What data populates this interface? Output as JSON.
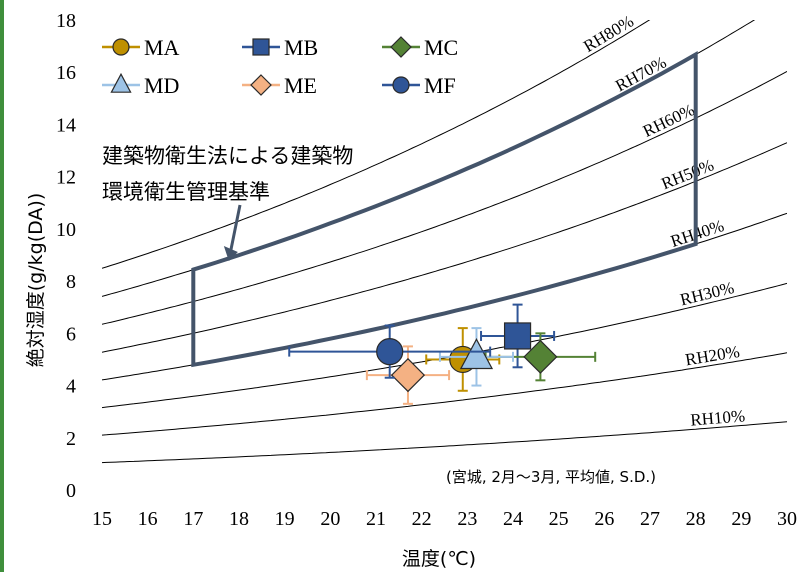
{
  "colors": {
    "frame": "#3f8f3c",
    "standard_box": "#44546a",
    "rh_curves": "#000000",
    "MA": "#bf9000",
    "MB": "#2f5597",
    "MC": "#548235",
    "MD": "#9dc3e6",
    "ME": "#f4b183",
    "MF": "#2f5597"
  },
  "chart_data": {
    "type": "scatter",
    "xlabel": "温度(℃)",
    "ylabel": "絶対湿度(g/kg(DA))",
    "xlim": [
      15,
      30
    ],
    "ylim": [
      0,
      18
    ],
    "xticks": [
      "15",
      "16",
      "17",
      "18",
      "19",
      "20",
      "21",
      "22",
      "23",
      "24",
      "25",
      "26",
      "27",
      "28",
      "29",
      "30"
    ],
    "yticks": [
      "0",
      "2",
      "4",
      "6",
      "8",
      "10",
      "12",
      "14",
      "16",
      "18"
    ],
    "grid": false,
    "legend_position": "top-left",
    "note": "(宮城, 2月〜3月, 平均値, S.D.)",
    "series": [
      {
        "name": "MA",
        "marker": "circle",
        "color": "#bf9000",
        "x": 22.9,
        "y": 5.0,
        "x_sd": 0.8,
        "y_sd": 1.2
      },
      {
        "name": "MB",
        "marker": "square",
        "color": "#2f5597",
        "x": 24.1,
        "y": 5.9,
        "x_sd": 0.8,
        "y_sd": 1.2
      },
      {
        "name": "MC",
        "marker": "diamond",
        "color": "#548235",
        "x": 24.6,
        "y": 5.1,
        "x_sd": 1.2,
        "y_sd": 0.9
      },
      {
        "name": "MD",
        "marker": "triangle",
        "color": "#9dc3e6",
        "x": 23.2,
        "y": 5.1,
        "x_sd": 0.8,
        "y_sd": 1.1
      },
      {
        "name": "ME",
        "marker": "diamond",
        "color": "#f4b183",
        "x": 21.7,
        "y": 4.4,
        "x_sd": 0.9,
        "y_sd": 1.1
      },
      {
        "name": "MF",
        "marker": "circle",
        "color": "#2f5597",
        "x": 21.3,
        "y": 5.3,
        "x_sd": 2.2,
        "y_sd": 1.0
      }
    ],
    "rh_curves": [
      {
        "label": "RH10%",
        "rh": 10
      },
      {
        "label": "RH20%",
        "rh": 20
      },
      {
        "label": "RH30%",
        "rh": 30
      },
      {
        "label": "RH40%",
        "rh": 40
      },
      {
        "label": "RH50%",
        "rh": 50
      },
      {
        "label": "RH60%",
        "rh": 60
      },
      {
        "label": "RH70%",
        "rh": 70
      },
      {
        "label": "RH80%",
        "rh": 80
      }
    ],
    "standard_region": {
      "label_line1": "建築物衛生法による建築物",
      "label_line2": "環境衛生管理基準",
      "t_min": 17,
      "t_max": 28,
      "rh_min": 40,
      "rh_max": 70
    }
  }
}
